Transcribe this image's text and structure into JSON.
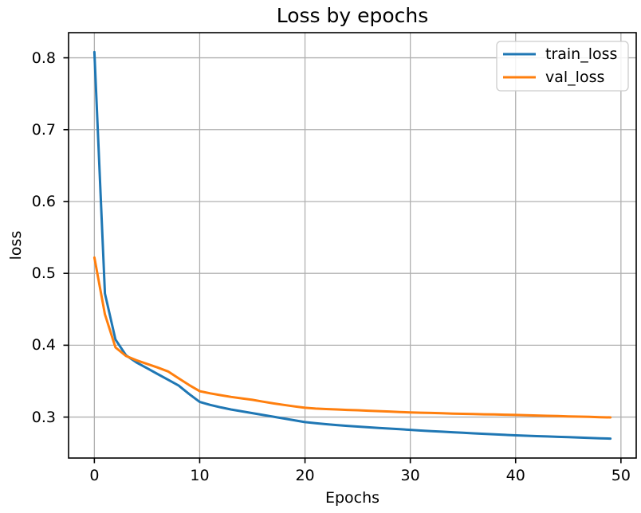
{
  "figure": {
    "background": "#ffffff"
  },
  "chart_data": {
    "type": "line",
    "title": "Loss by epochs",
    "xlabel": "Epochs",
    "ylabel": "loss",
    "grid": true,
    "legend": {
      "position": "upper right",
      "items": [
        "train_loss",
        "val_loss"
      ]
    },
    "xlim": [
      -2.45,
      51.45
    ],
    "ylim": [
      0.243,
      0.835
    ],
    "xticks": [
      {
        "value": 0,
        "label": "0"
      },
      {
        "value": 10,
        "label": "10"
      },
      {
        "value": 20,
        "label": "20"
      },
      {
        "value": 30,
        "label": "30"
      },
      {
        "value": 40,
        "label": "40"
      },
      {
        "value": 50,
        "label": "50"
      }
    ],
    "yticks": [
      {
        "value": 0.3,
        "label": "0.3"
      },
      {
        "value": 0.4,
        "label": "0.4"
      },
      {
        "value": 0.5,
        "label": "0.5"
      },
      {
        "value": 0.6,
        "label": "0.6"
      },
      {
        "value": 0.7,
        "label": "0.7"
      },
      {
        "value": 0.8,
        "label": "0.8"
      }
    ],
    "x": [
      0,
      1,
      2,
      3,
      4,
      5,
      6,
      7,
      8,
      9,
      10,
      11,
      12,
      13,
      14,
      15,
      16,
      17,
      18,
      19,
      20,
      21,
      22,
      23,
      24,
      25,
      26,
      27,
      28,
      29,
      30,
      31,
      32,
      33,
      34,
      35,
      36,
      37,
      38,
      39,
      40,
      41,
      42,
      43,
      44,
      45,
      46,
      47,
      48,
      49
    ],
    "series": [
      {
        "name": "train_loss",
        "color": "#1f77b4",
        "values": [
          0.808,
          0.472,
          0.408,
          0.386,
          0.376,
          0.368,
          0.36,
          0.352,
          0.344,
          0.332,
          0.321,
          0.317,
          0.3135,
          0.3105,
          0.308,
          0.3055,
          0.303,
          0.3005,
          0.298,
          0.2955,
          0.293,
          0.2915,
          0.2901,
          0.2889,
          0.2878,
          0.2868,
          0.2858,
          0.2849,
          0.284,
          0.2831,
          0.2822,
          0.2813,
          0.2805,
          0.2797,
          0.2789,
          0.2781,
          0.2774,
          0.2767,
          0.276,
          0.2753,
          0.2746,
          0.274,
          0.2735,
          0.273,
          0.2725,
          0.272,
          0.2715,
          0.271,
          0.2705,
          0.27
        ]
      },
      {
        "name": "val_loss",
        "color": "#ff7f0e",
        "values": [
          0.522,
          0.443,
          0.397,
          0.385,
          0.379,
          0.374,
          0.369,
          0.3635,
          0.354,
          0.3445,
          0.336,
          0.333,
          0.3305,
          0.328,
          0.326,
          0.324,
          0.3215,
          0.319,
          0.317,
          0.3148,
          0.313,
          0.3118,
          0.3112,
          0.3106,
          0.31,
          0.3095,
          0.3089,
          0.3083,
          0.3077,
          0.3071,
          0.3065,
          0.3061,
          0.3057,
          0.3053,
          0.3049,
          0.3045,
          0.3042,
          0.3039,
          0.3036,
          0.3033,
          0.303,
          0.3026,
          0.3022,
          0.3018,
          0.3014,
          0.301,
          0.3006,
          0.3003,
          0.2999,
          0.2995
        ]
      }
    ],
    "style": {
      "grid_color": "#b0b0b0",
      "spine_color": "#000000",
      "tick_color": "#000000",
      "text_color": "#000000",
      "legend_border_color": "#cccccc",
      "legend_background": "#ffffff"
    }
  }
}
